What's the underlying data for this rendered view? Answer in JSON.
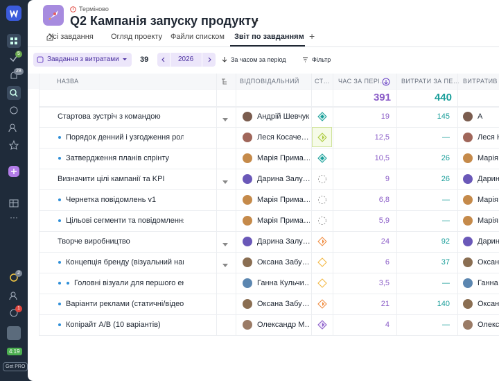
{
  "sidebar": {
    "badges": [
      "5",
      "28",
      "2",
      "1"
    ],
    "timer": "4:19",
    "upgrade": "Get PRO"
  },
  "header": {
    "priority": "Терміново",
    "title": "Q2 Кампанія запуску продукту",
    "tabs": [
      "Усі завдання",
      "Огляд проекту",
      "Файли списком",
      "Звіт по завданням"
    ],
    "add_tab": "+"
  },
  "toolbar": {
    "view": "Завдання з витратами",
    "count": "39",
    "year": "2026",
    "period": "За часом за період",
    "filter": "Фільтр"
  },
  "table": {
    "columns": [
      "НАЗВА",
      "ВІДПОВІДАЛЬНИЙ",
      "СТ…",
      "ЧАС ЗА ПЕРІ…",
      "ВИТРАТИ ЗА ПЕ…",
      "ВИТРАТИВ"
    ],
    "totals": {
      "time": "391",
      "cost": "440"
    },
    "rows": [
      {
        "name": "Стартова зустріч з командою",
        "level": 0,
        "expandable": true,
        "assignee": "Андрій Шевчук",
        "time": "19",
        "cost": "145",
        "spent_by": "А"
      },
      {
        "name": "Порядок денний і узгодження ролей",
        "level": 1,
        "expandable": false,
        "assignee": "Леся Косаче…",
        "time": "12,5",
        "cost": "—",
        "spent_by": "Леся К"
      },
      {
        "name": "Затвердження планів спрінту",
        "level": 1,
        "expandable": false,
        "assignee": "Марія Прима…",
        "time": "10,5",
        "cost": "26",
        "spent_by": "Марія"
      },
      {
        "name": "Визначити цілі кампанії та KPI",
        "level": 0,
        "expandable": true,
        "assignee": "Дарина Залу…",
        "time": "9",
        "cost": "26",
        "spent_by": "Дарин"
      },
      {
        "name": "Чернетка повідомлень v1",
        "level": 1,
        "expandable": false,
        "assignee": "Марія Прима…",
        "time": "6,8",
        "cost": "—",
        "spent_by": "Марія"
      },
      {
        "name": "Цільові сегменти та повідомлення",
        "level": 1,
        "expandable": false,
        "assignee": "Марія Прима…",
        "time": "5,9",
        "cost": "—",
        "spent_by": "Марія"
      },
      {
        "name": "Творче виробництво",
        "level": 0,
        "expandable": true,
        "assignee": "Дарина Залу…",
        "time": "24",
        "cost": "92",
        "spent_by": "Дарин"
      },
      {
        "name": "Концепція бренду (візуальний напрям)",
        "level": 1,
        "expandable": true,
        "assignee": "Оксана Забу…",
        "time": "6",
        "cost": "37",
        "spent_by": "Оксана"
      },
      {
        "name": "Головні візуали для першого екрану",
        "level": 2,
        "expandable": false,
        "assignee": "Ганна Кульчи…",
        "time": "3,5",
        "cost": "—",
        "spent_by": "Ганна К"
      },
      {
        "name": "Варіанти реклами (статичні/відео)",
        "level": 1,
        "expandable": false,
        "assignee": "Оксана Забу…",
        "time": "21",
        "cost": "140",
        "spent_by": "Оксана"
      },
      {
        "name": "Копірайт A/B (10 варіантів)",
        "level": 1,
        "expandable": false,
        "assignee": "Олександр М…",
        "time": "4",
        "cost": "—",
        "spent_by": "Олекса"
      }
    ]
  }
}
